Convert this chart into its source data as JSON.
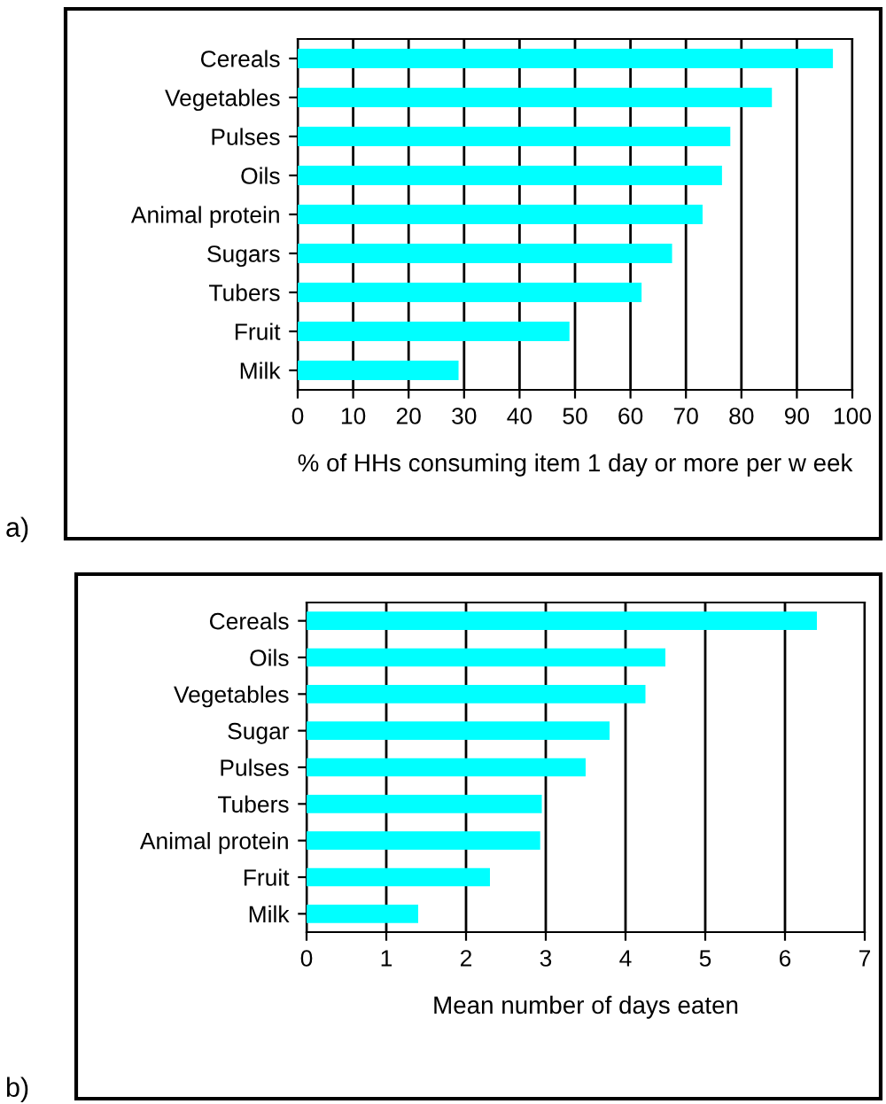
{
  "chart_data": [
    {
      "type": "bar",
      "orientation": "horizontal",
      "categories": [
        "Cereals",
        "Vegetables",
        "Pulses",
        "Oils",
        "Animal protein",
        "Sugars",
        "Tubers",
        "Fruit",
        "Milk"
      ],
      "series": [
        {
          "color": "#00ffff",
          "values": [
            96.5,
            85.5,
            78,
            76.5,
            73,
            67.5,
            62,
            49,
            29
          ]
        }
      ],
      "xlim": [
        0,
        100
      ],
      "xticks": [
        0,
        10,
        20,
        30,
        40,
        50,
        60,
        70,
        80,
        90,
        100
      ],
      "xlabel": "% of HHs consuming item 1 day or more per w eek",
      "grid": "x",
      "legend": false,
      "annotations": [
        "a)"
      ]
    },
    {
      "type": "bar",
      "orientation": "horizontal",
      "categories": [
        "Cereals",
        "Oils",
        "Vegetables",
        "Sugar",
        "Pulses",
        "Tubers",
        "Animal protein",
        "Fruit",
        "Milk"
      ],
      "series": [
        {
          "color": "#00ffff",
          "values": [
            6.4,
            4.5,
            4.25,
            3.8,
            3.5,
            2.95,
            2.93,
            2.3,
            1.4
          ]
        }
      ],
      "xlim": [
        0,
        7
      ],
      "xticks": [
        0,
        1,
        2,
        3,
        4,
        5,
        6,
        7
      ],
      "xlabel": "Mean number of days eaten",
      "grid": "x",
      "legend": false,
      "annotations": [
        "b)"
      ]
    }
  ]
}
